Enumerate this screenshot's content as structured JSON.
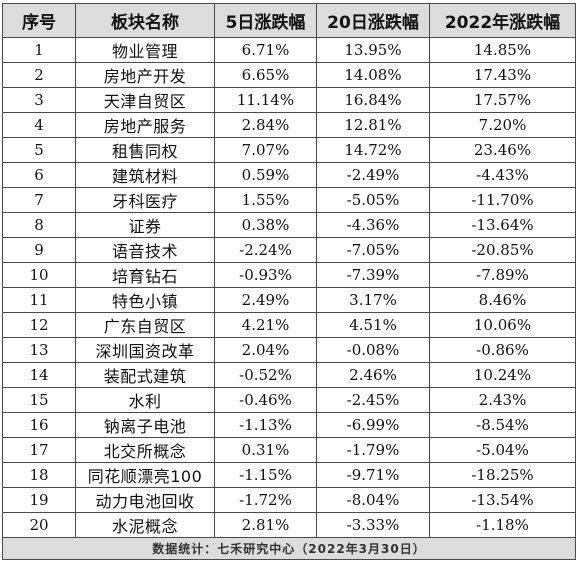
{
  "table": {
    "headers": [
      "序号",
      "板块名称",
      "5日涨跌幅",
      "20日涨跌幅",
      "2022年涨跌幅"
    ],
    "rows": [
      [
        "1",
        "物业管理",
        "6.71%",
        "13.95%",
        "14.85%"
      ],
      [
        "2",
        "房地产开发",
        "6.65%",
        "14.08%",
        "17.43%"
      ],
      [
        "3",
        "天津自贸区",
        "11.14%",
        "16.84%",
        "17.57%"
      ],
      [
        "4",
        "房地产服务",
        "2.84%",
        "12.81%",
        "7.20%"
      ],
      [
        "5",
        "租售同权",
        "7.07%",
        "14.72%",
        "23.46%"
      ],
      [
        "6",
        "建筑材料",
        "0.59%",
        "-2.49%",
        "-4.43%"
      ],
      [
        "7",
        "牙科医疗",
        "1.55%",
        "-5.05%",
        "-11.70%"
      ],
      [
        "8",
        "证券",
        "0.38%",
        "-4.36%",
        "-13.64%"
      ],
      [
        "9",
        "语音技术",
        "-2.24%",
        "-7.05%",
        "-20.85%"
      ],
      [
        "10",
        "培育钻石",
        "-0.93%",
        "-7.39%",
        "-7.89%"
      ],
      [
        "11",
        "特色小镇",
        "2.49%",
        "3.17%",
        "8.46%"
      ],
      [
        "12",
        "广东自贸区",
        "4.21%",
        "4.51%",
        "10.06%"
      ],
      [
        "13",
        "深圳国资改革",
        "2.04%",
        "-0.08%",
        "-0.86%"
      ],
      [
        "14",
        "装配式建筑",
        "-0.52%",
        "2.46%",
        "10.24%"
      ],
      [
        "15",
        "水利",
        "-0.46%",
        "-2.45%",
        "2.43%"
      ],
      [
        "16",
        "钠离子电池",
        "-1.13%",
        "-6.99%",
        "-8.54%"
      ],
      [
        "17",
        "北交所概念",
        "0.31%",
        "-1.79%",
        "-5.04%"
      ],
      [
        "18",
        "同花顺漂亮100",
        "-1.15%",
        "-9.71%",
        "-18.25%"
      ],
      [
        "19",
        "动力电池回收",
        "-1.72%",
        "-8.04%",
        "-13.54%"
      ],
      [
        "20",
        "水泥概念",
        "2.81%",
        "-3.33%",
        "-1.18%"
      ]
    ],
    "footer": "数据统计：七禾研究中心（2022年3月30日）"
  },
  "colors": {
    "header_background": "#dcdcdc",
    "footer_background": "#dcdcdc",
    "border": "#4a4a4a",
    "text": "#111111"
  }
}
